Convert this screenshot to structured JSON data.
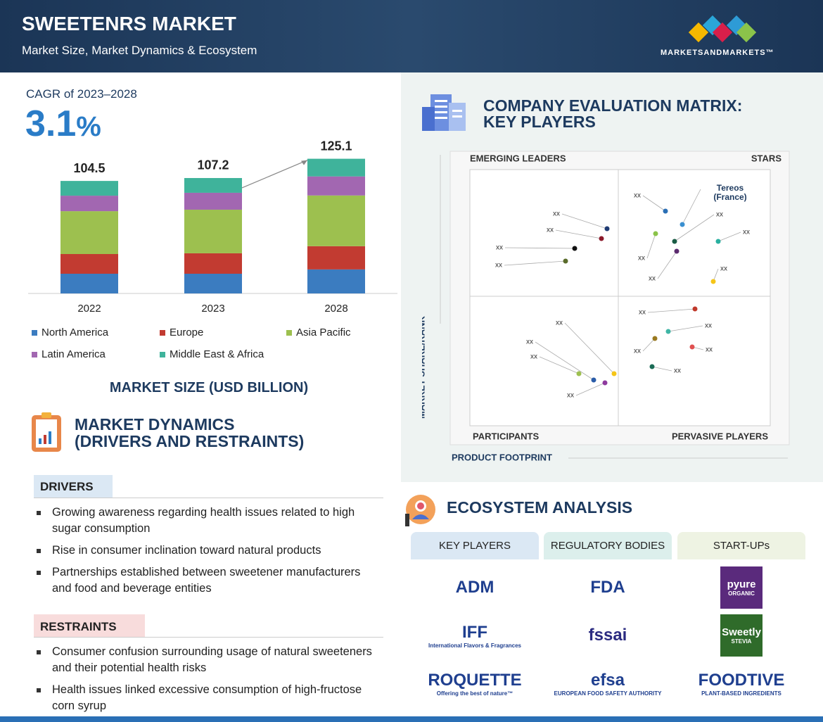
{
  "header": {
    "title": "SWEETENRS MARKET",
    "subtitle": "Market Size, Market Dynamics & Ecosystem",
    "brand": "MARKETSANDMARKETS™"
  },
  "cagr": {
    "label": "CAGR of 2023–2028",
    "value": "3.1",
    "unit": "%"
  },
  "chart_data": {
    "type": "stacked-bar",
    "title": "MARKET SIZE (USD BILLION)",
    "categories": [
      "2022",
      "2023",
      "2028"
    ],
    "totals": [
      104.5,
      107.2,
      125.1
    ],
    "series": [
      {
        "name": "North America",
        "color": "#3b7cc0",
        "values": [
          18.3,
          18.3,
          22.3
        ]
      },
      {
        "name": "Europe",
        "color": "#c23b31",
        "values": [
          18.3,
          19.0,
          21.6
        ]
      },
      {
        "name": "Asia Pacific",
        "color": "#9dc04f",
        "values": [
          39.8,
          40.5,
          47.1
        ]
      },
      {
        "name": "Latin America",
        "color": "#a267b1",
        "values": [
          14.4,
          15.7,
          17.7
        ]
      },
      {
        "name": "Middle East & Africa",
        "color": "#3fb39b",
        "values": [
          13.7,
          13.7,
          16.4
        ]
      }
    ]
  },
  "matrix": {
    "title": [
      "COMPANY EVALUATION MATRIX:",
      "KEY PLAYERS"
    ],
    "quadrants": [
      "EMERGING LEADERS",
      "STARS",
      "PARTICIPANTS",
      "PERVASIVE PLAYERS"
    ],
    "y_label": "MARKET SHARE/RANK",
    "x_label": "PRODUCT FOOTPRINT",
    "highlight": [
      "Tereos",
      "(France)"
    ],
    "point_labels": [
      "xx",
      "xx",
      "xx",
      "xx",
      "xx",
      "xx",
      "xx",
      "xx",
      "xx",
      "xx",
      "xx",
      "xx",
      "xx",
      "xx",
      "xx",
      "xx",
      "xx",
      "xx",
      "xx"
    ]
  },
  "dynamics": {
    "title": [
      "MARKET DYNAMICS",
      "(DRIVERS AND RESTRAINTS)"
    ],
    "drivers_title": "DRIVERS",
    "drivers": [
      [
        "Growing awareness regarding health issues related to high",
        "sugar consumption"
      ],
      [
        "Rise in consumer inclination toward natural products"
      ],
      [
        "Partnerships established between sweetener manufacturers",
        "and food and beverage entities"
      ]
    ],
    "restraints_title": "RESTRAINTS",
    "restraints": [
      [
        "Consumer confusion surrounding usage of natural sweeteners",
        "and their potential health risks"
      ],
      [
        "Health issues linked excessive consumption of high-fructose",
        "corn syrup"
      ]
    ]
  },
  "ecosystem": {
    "title": "ECOSYSTEM ANALYSIS",
    "columns": [
      {
        "name": "KEY PLAYERS",
        "logos": [
          [
            "ADM"
          ],
          [
            "IFF",
            "International Flavors & Fragrances"
          ],
          [
            "ROQUETTE",
            "Offering the best of nature™"
          ]
        ]
      },
      {
        "name": "REGULATORY BODIES",
        "logos": [
          [
            "FDA"
          ],
          [
            "fssai"
          ],
          [
            "efsa",
            "EUROPEAN FOOD SAFETY AUTHORITY"
          ]
        ]
      },
      {
        "name": "START-UPs",
        "logos": [
          [
            "pyure",
            "ORGANIC"
          ],
          [
            "Sweetly",
            "STEVIA"
          ],
          [
            "FOODTIVE",
            "PLANT-BASED INGREDIENTS"
          ]
        ]
      }
    ]
  }
}
